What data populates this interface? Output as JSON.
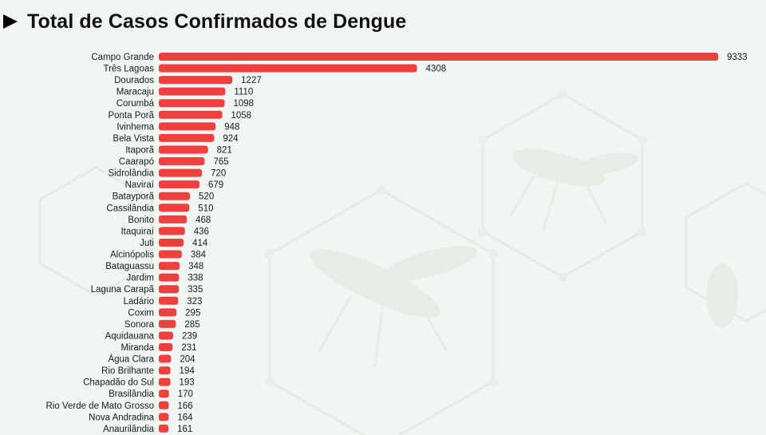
{
  "title": "Total de Casos Confirmados de Dengue",
  "colors": {
    "bar": "#ef4040",
    "background": "#f1f6f2",
    "text": "#1a1a1a"
  },
  "chart_data": {
    "type": "bar",
    "orientation": "horizontal",
    "title": "Total de Casos Confirmados de Dengue",
    "xlabel": "",
    "ylabel": "",
    "grid": false,
    "categories": [
      "Campo Grande",
      "Três Lagoas",
      "Dourados",
      "Maracaju",
      "Corumbá",
      "Ponta Porã",
      "Ivinhema",
      "Bela Vista",
      "Itaporã",
      "Caarapó",
      "Sidrolândia",
      "Naviraí",
      "Batayporã",
      "Cassilândia",
      "Bonito",
      "Itaquiraí",
      "Juti",
      "Alcinópolis",
      "Bataguassu",
      "Jardim",
      "Laguna Carapã",
      "Ladário",
      "Coxim",
      "Sonora",
      "Aquidauana",
      "Miranda",
      "Água Clara",
      "Rio Brilhante",
      "Chapadão do Sul",
      "Brasilândia",
      "Rio Verde de Mato Grosso",
      "Nova Andradina",
      "Anaurilândia"
    ],
    "values": [
      9333,
      4308,
      1227,
      1110,
      1098,
      1058,
      948,
      924,
      821,
      765,
      720,
      679,
      520,
      510,
      468,
      436,
      414,
      384,
      348,
      338,
      335,
      323,
      295,
      285,
      239,
      231,
      204,
      194,
      193,
      170,
      166,
      164,
      161
    ]
  }
}
